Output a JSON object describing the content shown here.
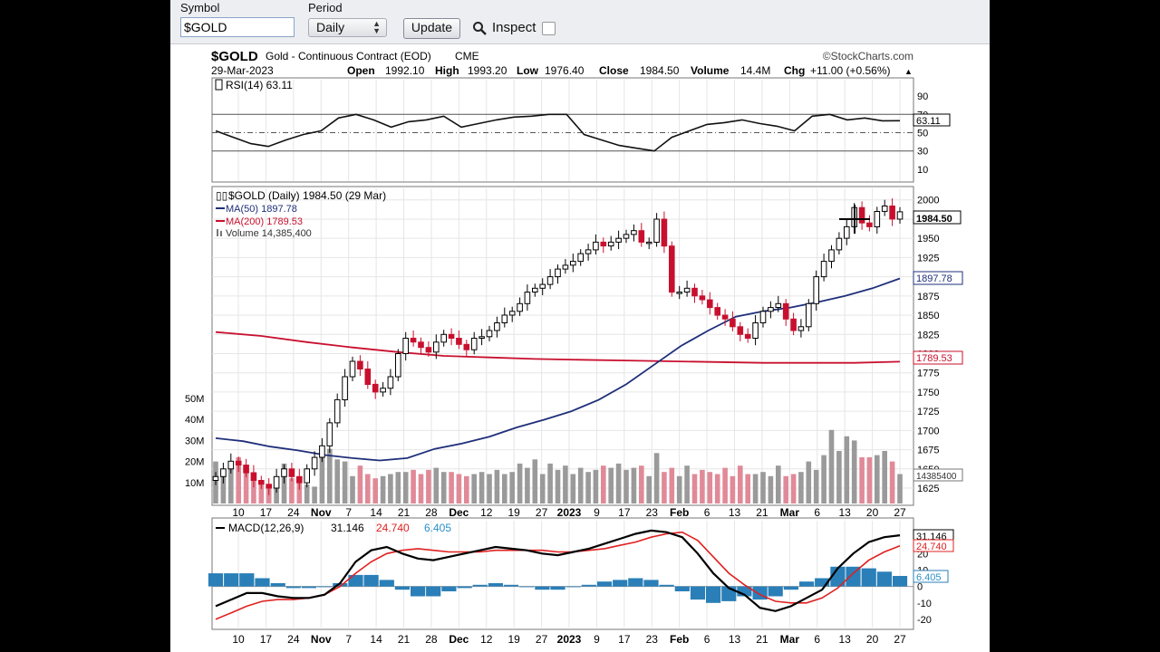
{
  "toolbar": {
    "symbol_label": "Symbol",
    "symbol_value": "$GOLD",
    "period_label": "Period",
    "period_value": "Daily",
    "update_label": "Update",
    "inspect_label": "Inspect"
  },
  "header": {
    "symbol": "$GOLD",
    "name": "Gold - Continuous Contract (EOD)",
    "exchange": "CME",
    "brand": "©StockCharts.com",
    "date": "29-Mar-2023",
    "open_label": "Open",
    "open": "1992.10",
    "high_label": "High",
    "high": "1993.20",
    "low_label": "Low",
    "low": "1976.40",
    "close_label": "Close",
    "close": "1984.50",
    "volume_label": "Volume",
    "volume": "14.4M",
    "chg_label": "Chg",
    "chg": "+11.00 (+0.56%)"
  },
  "rsi_panel": {
    "legend": "RSI(14) 63.11",
    "value_badge": "63.11"
  },
  "price_panel": {
    "legend_main": "$GOLD (Daily) 1984.50 (29 Mar)",
    "legend_ma50": "MA(50) 1897.78",
    "legend_ma200": "MA(200) 1789.53",
    "legend_volume": "Volume 14,385,400",
    "close_badge": "1984.50",
    "ma50_badge": "1897.78",
    "ma200_badge": "1789.53",
    "volume_badge": "14385400"
  },
  "macd_panel": {
    "legend_prefix": "MACD(12,26,9)",
    "macd_value": "31.146",
    "signal_value": "24.740",
    "hist_value": "6.405",
    "macd_badge": "31.146",
    "signal_badge": "24.740",
    "hist_badge": "6.405"
  },
  "colors": {
    "up": "#ffffff",
    "down": "#c8102e",
    "ma50": "#1f2f7a",
    "ma200": "#c8102e",
    "volume_up": "#9a9a9a",
    "volume_down": "#e08a98",
    "macd": "#000000",
    "signal": "#e02020",
    "histogram": "#2a7fb8",
    "hist_text": "#2a8fc8"
  },
  "chart_data": {
    "type": "candlestick",
    "symbol": "$GOLD",
    "period": "Daily",
    "x_axis": {
      "tick_labels": [
        "10",
        "17",
        "24",
        "Nov",
        "7",
        "14",
        "21",
        "28",
        "Dec",
        "12",
        "19",
        "27",
        "2023",
        "9",
        "17",
        "23",
        "Feb",
        "6",
        "13",
        "21",
        "Mar",
        "6",
        "13",
        "20",
        "27"
      ]
    },
    "rsi": {
      "period": 14,
      "last": 63.11,
      "ylim": [
        0,
        100
      ],
      "tick_labels": [
        "90",
        "70",
        "50",
        "30",
        "10"
      ],
      "reference_lines": [
        70,
        50,
        30
      ],
      "values": [
        52,
        45,
        38,
        35,
        42,
        48,
        52,
        66,
        70,
        64,
        56,
        62,
        64,
        68,
        56,
        60,
        64,
        67,
        68,
        70,
        70,
        48,
        42,
        36,
        33,
        30,
        45,
        52,
        59,
        61,
        64,
        60,
        57,
        52,
        68,
        70,
        64,
        66,
        63,
        63.11
      ]
    },
    "price": {
      "ylim": [
        1605,
        2015
      ],
      "tick_labels": [
        "2000",
        "1975",
        "1950",
        "1925",
        "1900",
        "1875",
        "1850",
        "1825",
        "1800",
        "1775",
        "1750",
        "1725",
        "1700",
        "1675",
        "1650",
        "1625"
      ],
      "closes": [
        1640,
        1650,
        1660,
        1655,
        1645,
        1635,
        1630,
        1625,
        1640,
        1650,
        1640,
        1632,
        1650,
        1665,
        1680,
        1710,
        1740,
        1770,
        1790,
        1780,
        1760,
        1750,
        1755,
        1770,
        1800,
        1820,
        1815,
        1808,
        1802,
        1815,
        1825,
        1820,
        1812,
        1805,
        1820,
        1822,
        1830,
        1840,
        1850,
        1855,
        1865,
        1880,
        1885,
        1890,
        1900,
        1910,
        1915,
        1920,
        1930,
        1935,
        1945,
        1940,
        1945,
        1950,
        1955,
        1960,
        1945,
        1945,
        1975,
        1940,
        1880,
        1880,
        1885,
        1875,
        1870,
        1860,
        1850,
        1845,
        1835,
        1825,
        1820,
        1840,
        1855,
        1860,
        1865,
        1845,
        1830,
        1835,
        1865,
        1900,
        1920,
        1935,
        1950,
        1965,
        1990,
        1970,
        1965,
        1985,
        1992,
        1975,
        1984.5
      ],
      "ma50": {
        "name": "MA(50)",
        "last": 1897.78,
        "values": [
          1690,
          1686,
          1679,
          1674,
          1668,
          1664,
          1661,
          1664,
          1676,
          1683,
          1692,
          1704,
          1714,
          1725,
          1740,
          1760,
          1785,
          1810,
          1830,
          1848,
          1855,
          1860,
          1867,
          1875,
          1885,
          1897.78
        ]
      },
      "ma200": {
        "name": "MA(200)",
        "last": 1789.53,
        "values": [
          1828,
          1823,
          1815,
          1808,
          1802,
          1797,
          1795,
          1793,
          1792,
          1791,
          1790,
          1789,
          1788,
          1788,
          1788,
          1789.53
        ]
      }
    },
    "volume": {
      "last": 14385400,
      "ylim": [
        0,
        50000000
      ],
      "tick_labels": [
        "50M",
        "40M",
        "30M",
        "20M",
        "10M"
      ],
      "values_millions": [
        20,
        16,
        18,
        22,
        15,
        12,
        10,
        9,
        11,
        19,
        12,
        10,
        9,
        8,
        22,
        26,
        21,
        20,
        13,
        18,
        14,
        12,
        13,
        14,
        15,
        15,
        16,
        14,
        16,
        17,
        15,
        15,
        14,
        13,
        14,
        15,
        14,
        16,
        14,
        15,
        19,
        17,
        21,
        14,
        19,
        16,
        18,
        14,
        17,
        15,
        16,
        18,
        17,
        19,
        16,
        17,
        18,
        13,
        24,
        15,
        17,
        13,
        18,
        14,
        16,
        15,
        14,
        17,
        13,
        18,
        14,
        14,
        15,
        13,
        18,
        13,
        14,
        15,
        20,
        16,
        23,
        35,
        25,
        32,
        30,
        22,
        22,
        23,
        25,
        20,
        14
      ]
    },
    "macd": {
      "params": "12,26,9",
      "ylim": [
        -25,
        40
      ],
      "tick_labels": [
        "30",
        "20",
        "10",
        "0",
        "-10",
        "-20"
      ],
      "macd_line": {
        "name": "MACD",
        "last": 31.146,
        "values": [
          -12,
          -8,
          -4,
          -4,
          -6,
          -7,
          -7,
          -5,
          2,
          15,
          22,
          24,
          20,
          17,
          16,
          18,
          20,
          22,
          24,
          23,
          22,
          20,
          19,
          21,
          23,
          26,
          29,
          32,
          34,
          33,
          30,
          20,
          8,
          -1,
          -5,
          -13,
          -15,
          -12,
          -7,
          -2,
          11,
          20,
          27,
          30,
          31.146
        ]
      },
      "signal_line": {
        "name": "Signal",
        "last": 24.74,
        "values": [
          -20,
          -16,
          -12,
          -9,
          -8,
          -8,
          -7,
          -5,
          0,
          8,
          15,
          20,
          22,
          23,
          22,
          21,
          21,
          21,
          22,
          22,
          22,
          22,
          21,
          21,
          22,
          23,
          25,
          27,
          30,
          32,
          33,
          28,
          18,
          8,
          1,
          -5,
          -9,
          -10,
          -10,
          -7,
          -1,
          8,
          16,
          21,
          24.74
        ]
      },
      "histogram": {
        "name": "Histogram",
        "last": 6.405,
        "values": [
          8,
          8,
          8,
          5,
          2,
          -1,
          -1,
          0,
          2,
          7,
          7,
          4,
          -2,
          -6,
          -6,
          -3,
          -1,
          1,
          2,
          1,
          0,
          -2,
          -2,
          0,
          1,
          3,
          4,
          5,
          4,
          1,
          -3,
          -8,
          -10,
          -9,
          -6,
          -8,
          -6,
          -2,
          3,
          5,
          12,
          12,
          11,
          9,
          6.405
        ]
      }
    }
  }
}
